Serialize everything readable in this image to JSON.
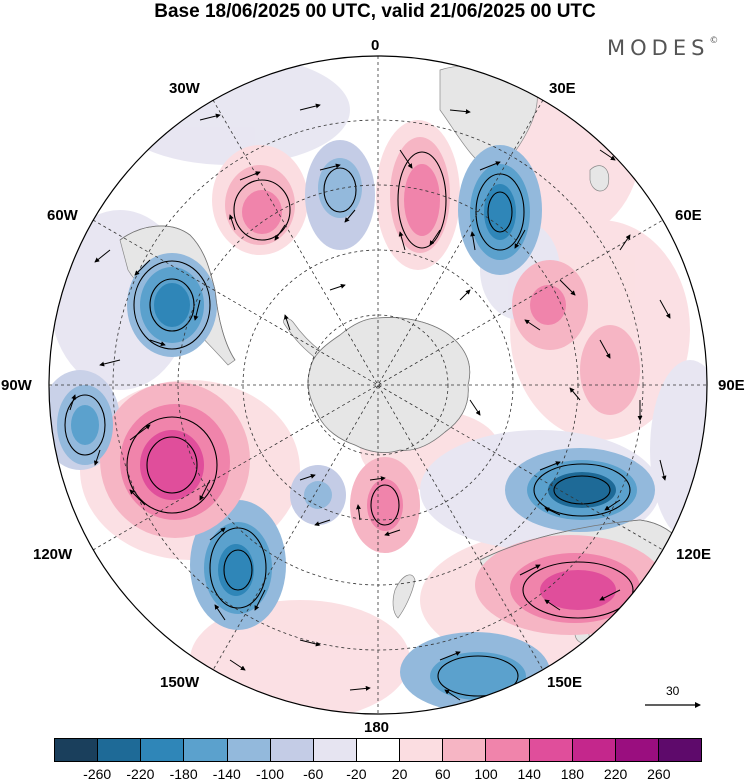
{
  "title": "Base 18/06/2025 00 UTC, valid 21/06/2025 00 UTC",
  "brand": "MODES",
  "brand_mark": "©",
  "projection": "south-polar-stereographic",
  "longitude_labels": {
    "lon_0": "0",
    "lon_30e": "30E",
    "lon_60e": "60E",
    "lon_90e": "90E",
    "lon_120e": "120E",
    "lon_150e": "150E",
    "lon_180": "180",
    "lon_150w": "150W",
    "lon_120w": "120W",
    "lon_90w": "90W",
    "lon_60w": "60W",
    "lon_30w": "30W"
  },
  "wind_reference": {
    "label": "30"
  },
  "colorbar": {
    "ticks": [
      "-260",
      "-220",
      "-180",
      "-140",
      "-100",
      "-60",
      "-20",
      "20",
      "60",
      "100",
      "140",
      "180",
      "220",
      "260"
    ],
    "colors": [
      "#1a3f5c",
      "#1e6a97",
      "#2f86b8",
      "#5ba1cd",
      "#93b9dc",
      "#c4cce6",
      "#e6e4f1",
      "#ffffff",
      "#fbdde1",
      "#f6b5c4",
      "#f084ab",
      "#e04e9b",
      "#c4278c",
      "#9a0e7f",
      "#5e0a6b"
    ]
  },
  "anomaly_features": [
    {
      "id": "neg-60w",
      "sign": "negative",
      "level": -200
    },
    {
      "id": "pos-30w",
      "sign": "positive",
      "level": 150
    },
    {
      "id": "neg-10w",
      "sign": "negative",
      "level": -110
    },
    {
      "id": "pos-5e",
      "sign": "positive",
      "level": 160
    },
    {
      "id": "neg-30e",
      "sign": "negative",
      "level": -200
    },
    {
      "id": "pos-60e",
      "sign": "positive",
      "level": 90
    },
    {
      "id": "pos-75e",
      "sign": "positive",
      "level": 100
    },
    {
      "id": "neg-105e",
      "sign": "negative",
      "level": -220
    },
    {
      "id": "pos-125e",
      "sign": "positive",
      "level": 180
    },
    {
      "id": "neg-150e",
      "sign": "negative",
      "level": -130
    },
    {
      "id": "pos-175e",
      "sign": "positive",
      "level": 150
    },
    {
      "id": "neg-140w",
      "sign": "negative",
      "level": -210
    },
    {
      "id": "pos-110w",
      "sign": "positive",
      "level": 190
    },
    {
      "id": "neg-95w",
      "sign": "negative",
      "level": -130
    }
  ]
}
